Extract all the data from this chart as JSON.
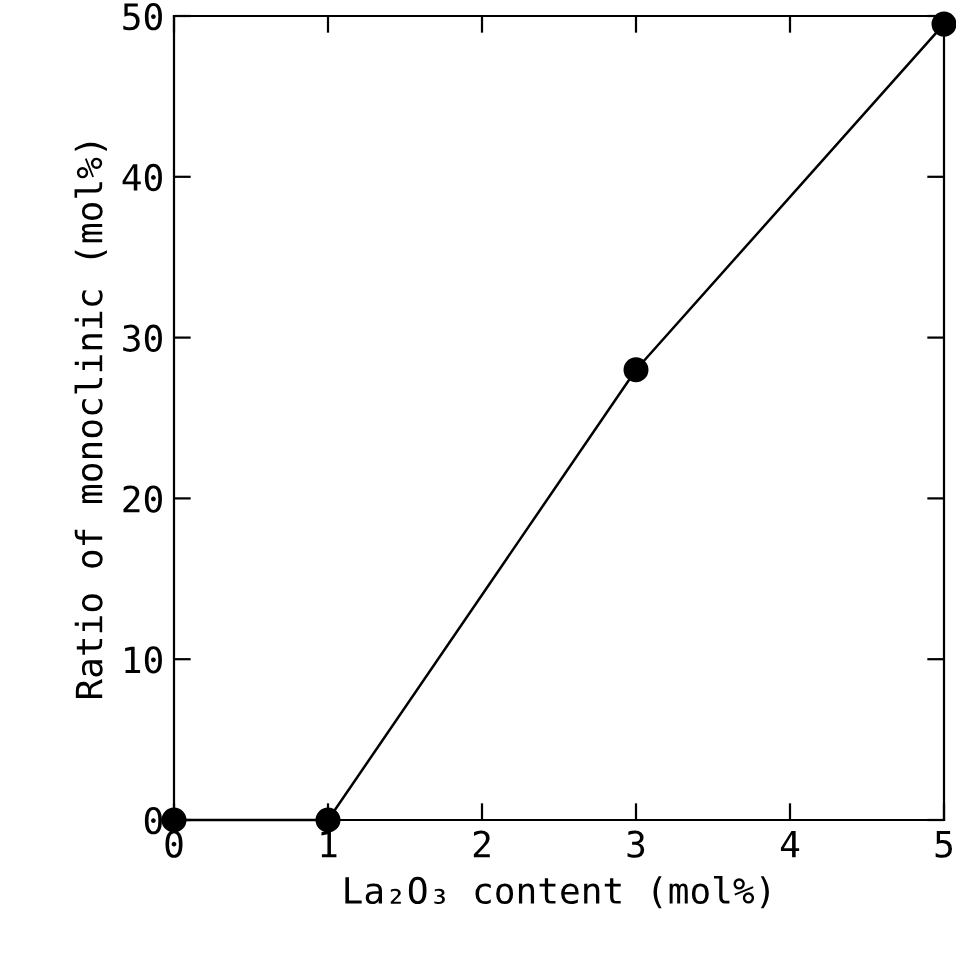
{
  "chart_data": {
    "type": "line",
    "xlabel": "La₂O₃ content (mol%)",
    "ylabel": "Ratio of monoclinic (mol%)",
    "x": [
      0,
      1,
      3,
      5
    ],
    "series": [
      {
        "color": "#000000",
        "values": [
          0,
          0,
          28,
          49.5
        ]
      }
    ],
    "xlim": [
      0,
      5
    ],
    "ylim": [
      0,
      50
    ],
    "xticks": [
      0,
      1,
      2,
      3,
      4,
      5
    ],
    "yticks": [
      0,
      10,
      20,
      30,
      40,
      50
    ],
    "marker": "circle",
    "line_style": "solid"
  }
}
